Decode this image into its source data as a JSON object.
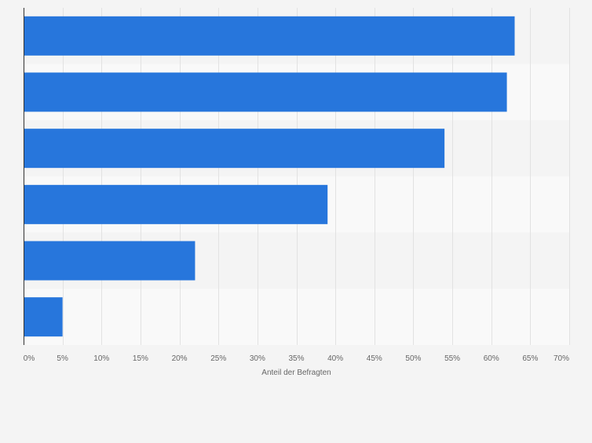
{
  "chart_data": {
    "type": "bar",
    "orientation": "horizontal",
    "categories": [
      "",
      "",
      "",
      "",
      "",
      ""
    ],
    "values": [
      63,
      62,
      54,
      39,
      22,
      5
    ],
    "xlabel": "Anteil der Befragten",
    "ylabel": "",
    "xlim": [
      0,
      70
    ],
    "x_ticks": [
      "0%",
      "5%",
      "10%",
      "15%",
      "20%",
      "25%",
      "30%",
      "35%",
      "40%",
      "45%",
      "50%",
      "55%",
      "60%",
      "65%",
      "70%"
    ],
    "grid": "vertical",
    "legend": "none",
    "colors": {
      "bar": "#2776dc",
      "band_dark": "#f4f4f4",
      "band_light": "#f9f9f9",
      "grid": "#e2e2e2",
      "axis": "#333333"
    }
  }
}
